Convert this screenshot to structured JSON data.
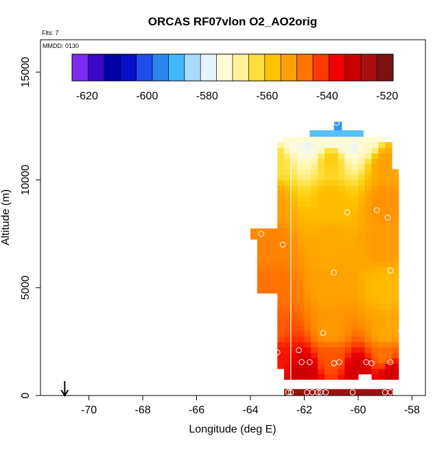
{
  "chart_data": {
    "type": "heatmap",
    "title": "ORCAS RF07vlon O2_AO2orig",
    "annotations": [
      "Flts: 7",
      "MMDD: 0130"
    ],
    "xlabel": "Longitude (deg E)",
    "ylabel": "Altitude (m)",
    "xlim": [
      -71.8,
      -57.5
    ],
    "ylim": [
      0,
      16500
    ],
    "x_ticks": [
      -70,
      -68,
      -66,
      -64,
      -62,
      -60,
      -58
    ],
    "y_ticks": [
      0,
      5000,
      10000,
      15000
    ],
    "colorbar": {
      "placement": "top inside plot",
      "ticks": [
        -620,
        -600,
        -580,
        -560,
        -540,
        -520
      ],
      "range": [
        -625,
        -518
      ],
      "colors": [
        "#7a2cf0",
        "#3a08c8",
        "#0000a8",
        "#0a10c8",
        "#1b4de8",
        "#2c86f2",
        "#40b8fb",
        "#a8dcfb",
        "#e5f4ff",
        "#fffbd6",
        "#fff39a",
        "#ffe03a",
        "#ffc400",
        "#ffa000",
        "#ff7400",
        "#ff3a00",
        "#f00000",
        "#c80000",
        "#a81010",
        "#7a1414"
      ]
    },
    "cells": [
      {
        "lon": -61.0,
        "alt": 12300,
        "value": -588
      },
      {
        "lon": -61.6,
        "alt": 12350,
        "value": -590
      },
      {
        "lon": -60.4,
        "alt": 12300,
        "value": -589
      },
      {
        "lon": -60.9,
        "alt": 12600,
        "value": -595
      },
      {
        "lon": -62.5,
        "alt": 11950,
        "value": -575
      },
      {
        "lon": -61.5,
        "alt": 11950,
        "value": -574
      },
      {
        "lon": -60.5,
        "alt": 11950,
        "value": -574
      },
      {
        "lon": -59.6,
        "alt": 11950,
        "value": -573
      },
      {
        "lon": -63.0,
        "alt": 11000,
        "value": -563
      },
      {
        "lon": -61.0,
        "alt": 11000,
        "value": -559
      },
      {
        "lon": -59.0,
        "alt": 10800,
        "value": -552
      },
      {
        "lon": -63.2,
        "alt": 9000,
        "value": -552
      },
      {
        "lon": -61.0,
        "alt": 9000,
        "value": -556
      },
      {
        "lon": -59.0,
        "alt": 9000,
        "value": -550
      },
      {
        "lon": -63.2,
        "alt": 7000,
        "value": -548
      },
      {
        "lon": -61.0,
        "alt": 7000,
        "value": -553
      },
      {
        "lon": -59.0,
        "alt": 7000,
        "value": -551
      },
      {
        "lon": -63.2,
        "alt": 5000,
        "value": -546
      },
      {
        "lon": -61.0,
        "alt": 5000,
        "value": -552
      },
      {
        "lon": -59.0,
        "alt": 5000,
        "value": -556
      },
      {
        "lon": -63.2,
        "alt": 3000,
        "value": -544
      },
      {
        "lon": -61.0,
        "alt": 3000,
        "value": -551
      },
      {
        "lon": -59.0,
        "alt": 3000,
        "value": -553
      },
      {
        "lon": -63.0,
        "alt": 1800,
        "value": -537
      },
      {
        "lon": -61.0,
        "alt": 1800,
        "value": -543
      },
      {
        "lon": -59.0,
        "alt": 1800,
        "value": -546
      },
      {
        "lon": -62.0,
        "alt": 1100,
        "value": -530
      },
      {
        "lon": -60.0,
        "alt": 1100,
        "value": -531
      },
      {
        "lon": -58.8,
        "alt": 1100,
        "value": -530
      }
    ],
    "points": [
      {
        "lon": -60.8,
        "alt": 12650
      },
      {
        "lon": -60.4,
        "alt": 8500
      },
      {
        "lon": -59.3,
        "alt": 8600
      },
      {
        "lon": -58.9,
        "alt": 8250
      },
      {
        "lon": -58.4,
        "alt": 10350
      },
      {
        "lon": -63.6,
        "alt": 7500
      },
      {
        "lon": -62.8,
        "alt": 7000
      },
      {
        "lon": -60.9,
        "alt": 5700
      },
      {
        "lon": -58.8,
        "alt": 5800
      },
      {
        "lon": -63.1,
        "alt": 4500
      },
      {
        "lon": -61.3,
        "alt": 2900
      },
      {
        "lon": -58.4,
        "alt": 3000
      },
      {
        "lon": -63.0,
        "alt": 2000
      },
      {
        "lon": -62.2,
        "alt": 2100
      },
      {
        "lon": -62.1,
        "alt": 1550
      },
      {
        "lon": -61.8,
        "alt": 1550
      },
      {
        "lon": -60.9,
        "alt": 1500
      },
      {
        "lon": -60.7,
        "alt": 1550
      },
      {
        "lon": -59.7,
        "alt": 1550
      },
      {
        "lon": -59.5,
        "alt": 1500
      },
      {
        "lon": -58.8,
        "alt": 1550
      },
      {
        "lon": -62.6,
        "alt": 150
      },
      {
        "lon": -62.5,
        "alt": 150
      },
      {
        "lon": -61.9,
        "alt": 150
      },
      {
        "lon": -61.7,
        "alt": 150
      },
      {
        "lon": -61.5,
        "alt": 150
      },
      {
        "lon": -61.4,
        "alt": 150
      },
      {
        "lon": -61.2,
        "alt": 150
      },
      {
        "lon": -60.2,
        "alt": 150
      },
      {
        "lon": -59.0,
        "alt": 150
      },
      {
        "lon": -58.8,
        "alt": 150
      }
    ],
    "arrow": {
      "lon": -70.9,
      "alt": 0
    }
  }
}
